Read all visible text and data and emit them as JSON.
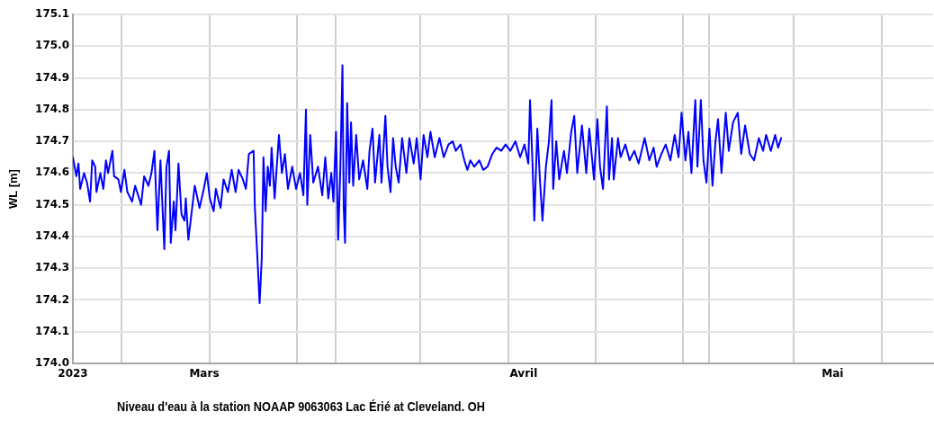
{
  "chart_data": {
    "type": "line",
    "ylabel": "WL [m]",
    "annotations": [
      "Niveau d'eau à la station NOAAP 9063063 Lac Érié at Cleveland. OH"
    ],
    "x": [
      "2023-02-16T06:00",
      "2023-02-16T14:00",
      "2023-02-16T19:00",
      "2023-02-16T23:00",
      "2023-02-17T08:00",
      "2023-02-17T15:00",
      "2023-02-17T22:00",
      "2023-02-18T03:00",
      "2023-02-18T10:00",
      "2023-02-18T13:00",
      "2023-02-18T22:00",
      "2023-02-19T05:00",
      "2023-02-19T11:00",
      "2023-02-19T16:00",
      "2023-02-20T02:00",
      "2023-02-20T06:00",
      "2023-02-20T16:00",
      "2023-02-20T22:00",
      "2023-02-21T06:00",
      "2023-02-21T13:00",
      "2023-02-22T00:00",
      "2023-02-22T07:00",
      "2023-02-22T21:00",
      "2023-02-23T04:00",
      "2023-02-23T14:00",
      "2023-02-23T21:00",
      "2023-02-24T04:00",
      "2023-02-24T11:00",
      "2023-02-24T18:00",
      "2023-02-25T03:00",
      "2023-02-25T08:00",
      "2023-02-25T14:00",
      "2023-02-25T18:00",
      "2023-02-26T01:00",
      "2023-02-26T05:00",
      "2023-02-26T12:00",
      "2023-02-26T19:00",
      "2023-02-27T02:00",
      "2023-02-27T05:00",
      "2023-02-27T11:00",
      "2023-02-27T19:00",
      "2023-02-28T02:00",
      "2023-02-28T13:00",
      "2023-02-28T23:00",
      "2023-03-01T06:00",
      "2023-03-01T13:00",
      "2023-03-01T22:00",
      "2023-03-02T03:00",
      "2023-03-02T14:00",
      "2023-03-02T21:00",
      "2023-03-03T07:00",
      "2023-03-03T16:00",
      "2023-03-04T01:00",
      "2023-03-04T08:00",
      "2023-03-04T18:00",
      "2023-03-05T01:00",
      "2023-03-05T08:00",
      "2023-03-05T19:00",
      "2023-03-05T22:00",
      "2023-03-06T04:00",
      "2023-03-06T09:00",
      "2023-03-06T14:00",
      "2023-03-06T18:00",
      "2023-03-06T23:00",
      "2023-03-07T04:00",
      "2023-03-07T09:00",
      "2023-03-07T13:00",
      "2023-03-07T20:00",
      "2023-03-08T06:00",
      "2023-03-08T13:00",
      "2023-03-08T20:00",
      "2023-03-09T03:00",
      "2023-03-09T13:00",
      "2023-03-09T22:00",
      "2023-03-10T07:00",
      "2023-03-10T15:00",
      "2023-03-10T21:00",
      "2023-03-11T00:00",
      "2023-03-11T07:00",
      "2023-03-11T14:00",
      "2023-03-12T01:00",
      "2023-03-12T11:00",
      "2023-03-12T18:00",
      "2023-03-13T01:00",
      "2023-03-13T08:00",
      "2023-03-13T13:00",
      "2023-03-13T19:00",
      "2023-03-14T00:00",
      "2023-03-14T05:00",
      "2023-03-14T10:00",
      "2023-03-14T13:00",
      "2023-03-14T16:00",
      "2023-03-14T21:00",
      "2023-03-15T02:00",
      "2023-03-15T06:00",
      "2023-03-15T11:00",
      "2023-03-15T18:00",
      "2023-03-16T01:00",
      "2023-03-16T10:00",
      "2023-03-16T20:00",
      "2023-03-17T01:00",
      "2023-03-17T08:00",
      "2023-03-17T14:00",
      "2023-03-18T00:00",
      "2023-03-18T05:00",
      "2023-03-18T14:00",
      "2023-03-18T19:00",
      "2023-03-19T02:00",
      "2023-03-19T08:00",
      "2023-03-19T14:00",
      "2023-03-19T21:00",
      "2023-03-20T05:00",
      "2023-03-20T15:00",
      "2023-03-20T22:00",
      "2023-03-21T08:00",
      "2023-03-21T15:00",
      "2023-03-22T00:00",
      "2023-03-22T07:00",
      "2023-03-22T16:00",
      "2023-03-22T23:00",
      "2023-03-23T09:00",
      "2023-03-23T20:00",
      "2023-03-24T06:00",
      "2023-03-24T17:00",
      "2023-03-25T03:00",
      "2023-03-25T10:00",
      "2023-03-25T21:00",
      "2023-03-26T06:00",
      "2023-03-26T13:00",
      "2023-03-26T20:00",
      "2023-03-27T05:00",
      "2023-03-27T17:00",
      "2023-03-28T02:00",
      "2023-03-28T12:00",
      "2023-03-28T23:00",
      "2023-03-29T09:00",
      "2023-03-29T20:00",
      "2023-03-30T06:00",
      "2023-03-30T17:00",
      "2023-03-31T05:00",
      "2023-03-31T16:00",
      "2023-04-01T02:00",
      "2023-04-01T11:00",
      "2023-04-01T15:00",
      "2023-04-01T21:00",
      "2023-04-02T01:00",
      "2023-04-02T08:00",
      "2023-04-02T14:00",
      "2023-04-02T20:00",
      "2023-04-03T04:00",
      "2023-04-03T11:00",
      "2023-04-03T17:00",
      "2023-04-03T21:00",
      "2023-04-04T04:00",
      "2023-04-04T11:00",
      "2023-04-04T22:00",
      "2023-04-05T05:00",
      "2023-04-05T15:00",
      "2023-04-05T22:00",
      "2023-04-06T05:00",
      "2023-04-06T16:00",
      "2023-04-07T02:00",
      "2023-04-07T09:00",
      "2023-04-07T20:00",
      "2023-04-08T04:00",
      "2023-04-08T10:00",
      "2023-04-08T17:00",
      "2023-04-09T02:00",
      "2023-04-09T07:00",
      "2023-04-09T14:00",
      "2023-04-09T18:00",
      "2023-04-10T04:00",
      "2023-04-10T10:00",
      "2023-04-10T21:00",
      "2023-04-11T07:00",
      "2023-04-11T18:00",
      "2023-04-12T04:00",
      "2023-04-12T18:00",
      "2023-04-13T05:00",
      "2023-04-13T15:00",
      "2023-04-13T22:00",
      "2023-04-14T09:00",
      "2023-04-14T19:00",
      "2023-04-15T06:00",
      "2023-04-15T16:00",
      "2023-04-16T01:00",
      "2023-04-16T08:00",
      "2023-04-16T17:00",
      "2023-04-17T00:00",
      "2023-04-17T07:00",
      "2023-04-17T16:00",
      "2023-04-17T21:00",
      "2023-04-18T05:00",
      "2023-04-18T11:00",
      "2023-04-18T18:00",
      "2023-04-19T01:00",
      "2023-04-19T08:00",
      "2023-04-19T15:00",
      "2023-04-19T21:00",
      "2023-04-20T05:00",
      "2023-04-20T15:00",
      "2023-04-20T22:00",
      "2023-04-21T08:00",
      "2023-04-21T19:00",
      "2023-04-22T03:00",
      "2023-04-22T12:00",
      "2023-04-22T23:00",
      "2023-04-23T09:00",
      "2023-04-23T20:00",
      "2023-04-24T06:00",
      "2023-04-24T13:00",
      "2023-04-25T00:00",
      "2023-04-25T10:00",
      "2023-04-25T17:00",
      "2023-04-26T00:00"
    ],
    "series": [
      {
        "color": "#0000ff",
        "values": [
          174.65,
          174.59,
          174.63,
          174.55,
          174.6,
          174.57,
          174.51,
          174.64,
          174.62,
          174.54,
          174.6,
          174.55,
          174.64,
          174.6,
          174.67,
          174.59,
          174.58,
          174.54,
          174.61,
          174.54,
          174.51,
          174.56,
          174.5,
          174.59,
          174.56,
          174.6,
          174.67,
          174.42,
          174.64,
          174.36,
          174.62,
          174.67,
          174.38,
          174.51,
          174.42,
          174.63,
          174.47,
          174.45,
          174.52,
          174.39,
          174.48,
          174.56,
          174.49,
          174.55,
          174.6,
          174.52,
          174.48,
          174.55,
          174.49,
          174.58,
          174.54,
          174.61,
          174.54,
          174.61,
          174.58,
          174.55,
          174.66,
          174.67,
          174.49,
          174.33,
          174.19,
          174.33,
          174.65,
          174.48,
          174.62,
          174.56,
          174.68,
          174.52,
          174.72,
          174.6,
          174.66,
          174.55,
          174.62,
          174.55,
          174.6,
          174.53,
          174.8,
          174.5,
          174.72,
          174.57,
          174.62,
          174.53,
          174.65,
          174.52,
          174.6,
          174.51,
          174.73,
          174.39,
          174.61,
          174.94,
          174.49,
          174.38,
          174.82,
          174.57,
          174.76,
          174.56,
          174.72,
          174.58,
          174.64,
          174.55,
          174.67,
          174.74,
          174.57,
          174.72,
          174.57,
          174.78,
          174.62,
          174.54,
          174.71,
          174.62,
          174.57,
          174.71,
          174.6,
          174.71,
          174.63,
          174.71,
          174.58,
          174.72,
          174.65,
          174.73,
          174.65,
          174.71,
          174.65,
          174.69,
          174.7,
          174.67,
          174.69,
          174.64,
          174.61,
          174.64,
          174.62,
          174.64,
          174.61,
          174.62,
          174.66,
          174.68,
          174.67,
          174.69,
          174.67,
          174.7,
          174.65,
          174.69,
          174.63,
          174.83,
          174.62,
          174.45,
          174.74,
          174.58,
          174.45,
          174.62,
          174.7,
          174.83,
          174.55,
          174.7,
          174.58,
          174.67,
          174.6,
          174.73,
          174.78,
          174.6,
          174.75,
          174.6,
          174.74,
          174.58,
          174.77,
          174.62,
          174.55,
          174.81,
          174.58,
          174.71,
          174.58,
          174.71,
          174.65,
          174.69,
          174.64,
          174.67,
          174.63,
          174.71,
          174.64,
          174.68,
          174.62,
          174.66,
          174.69,
          174.64,
          174.72,
          174.65,
          174.79,
          174.64,
          174.73,
          174.6,
          174.83,
          174.62,
          174.83,
          174.64,
          174.57,
          174.74,
          174.56,
          174.7,
          174.77,
          174.6,
          174.79,
          174.67,
          174.76,
          174.79,
          174.66,
          174.75,
          174.66,
          174.64,
          174.71,
          174.67,
          174.72,
          174.67,
          174.72,
          174.68,
          174.71
        ]
      }
    ],
    "xlim": [
      "2023-02-16T06:00",
      "2023-05-10T18:00"
    ],
    "xticks": [
      {
        "value": "2023-02-16T06:00",
        "label": "2023"
      },
      {
        "value": "2023-02-21",
        "label": null
      },
      {
        "value": "2023-03-01",
        "label": "Mars"
      },
      {
        "value": "2023-03-01T12:00",
        "label": null
      },
      {
        "value": "2023-03-10",
        "label": null
      },
      {
        "value": "2023-03-13T18:00",
        "label": null
      },
      {
        "value": "2023-03-22",
        "label": null
      },
      {
        "value": "2023-03-30T12:00",
        "label": null
      },
      {
        "value": "2023-04-01",
        "label": "Avril"
      },
      {
        "value": "2023-04-08",
        "label": null
      },
      {
        "value": "2023-04-16T12:00",
        "label": null
      },
      {
        "value": "2023-04-19",
        "label": null
      },
      {
        "value": "2023-04-27T06:00",
        "label": null
      },
      {
        "value": "2023-05-01",
        "label": "Mai"
      },
      {
        "value": "2023-05-05T18:00",
        "label": null
      }
    ],
    "ylim": [
      174,
      175.1
    ],
    "yticks": [
      {
        "value": 174,
        "label": "174.0"
      },
      174.1,
      174.2,
      174.3,
      174.4,
      174.5,
      174.6,
      174.7,
      174.8,
      174.9,
      {
        "value": 175,
        "label": "175.0"
      },
      175.1
    ],
    "grid": true,
    "line_style": "solid"
  }
}
